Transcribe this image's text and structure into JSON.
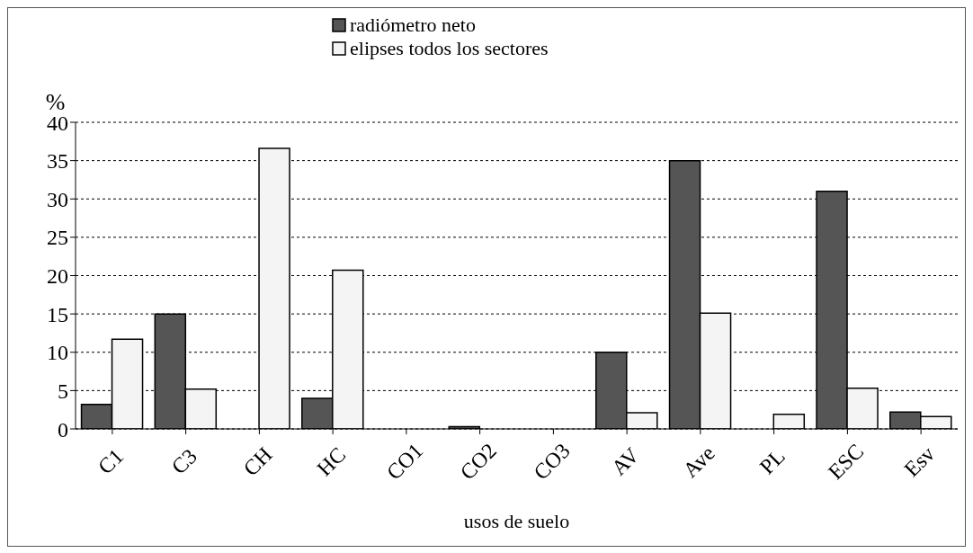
{
  "chart_data": {
    "type": "bar",
    "xlabel": "usos de suelo",
    "ylabel": "%",
    "categories": [
      "C1",
      "C3",
      "CH",
      "HC",
      "CO1",
      "CO2",
      "CO3",
      "AV",
      "Ave",
      "PL",
      "ESC",
      "Esv"
    ],
    "series": [
      {
        "name": "radiómetro neto",
        "color": "#555555",
        "values": [
          3.2,
          15,
          0,
          4,
          0,
          0.3,
          0,
          10,
          35,
          0,
          31,
          2.2
        ]
      },
      {
        "name": "elipses todos los sectores",
        "color": "#f4f4f4",
        "values": [
          11.7,
          5.2,
          36.6,
          20.7,
          0,
          0,
          0,
          2.1,
          15.1,
          1.9,
          5.3,
          1.6
        ]
      }
    ],
    "ylim": [
      0,
      40
    ],
    "yticks": [
      0,
      5,
      10,
      15,
      20,
      25,
      30,
      35,
      40
    ],
    "grid": "y",
    "legend": "top"
  }
}
